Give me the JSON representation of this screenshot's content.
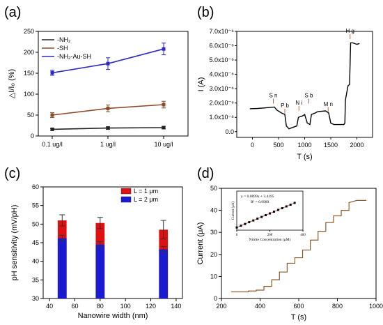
{
  "chart_data": [
    {
      "panel": "(a)",
      "type": "line",
      "categories": [
        "0.1 ug/l",
        "1 ug/l",
        "10 ug/l"
      ],
      "ylabel": "△I/I₀ (%)",
      "ylim": [
        0,
        250
      ],
      "yticks": [
        0,
        50,
        100,
        150,
        200,
        250
      ],
      "legend": "top-left",
      "series": [
        {
          "name": "-NH₂",
          "values": [
            16,
            19,
            20
          ],
          "errors": [
            2,
            3,
            3
          ],
          "color": "#222222"
        },
        {
          "name": "-SH",
          "values": [
            50,
            66,
            75
          ],
          "errors": [
            6,
            8,
            8
          ],
          "color": "#8b4c2a"
        },
        {
          "name": "-NH₂-Au-SH",
          "values": [
            151,
            173,
            208
          ],
          "errors": [
            6,
            14,
            14
          ],
          "color": "#2b2bbf"
        }
      ]
    },
    {
      "panel": "(b)",
      "type": "line",
      "xlabel": "T (s)",
      "ylabel": "I (A)",
      "xlim": [
        -300,
        2300
      ],
      "xticks": [
        0,
        500,
        1000,
        1500,
        2000
      ],
      "ylim": [
        -0.4,
        7.0
      ],
      "yticks": [
        0.0,
        1.0,
        2.0,
        3.0,
        4.0,
        5.0,
        6.0,
        7.0
      ],
      "ytick_labels": [
        "0.0",
        "1.0x10⁻⁶",
        "2.0x10⁻⁶",
        "3.0x10⁻⁶",
        "4.0x10⁻⁶",
        "5.0x10⁻⁶",
        "6.0x10⁻⁶",
        "7.0x10⁻⁶"
      ],
      "x": [
        -50,
        100,
        300,
        420,
        470,
        560,
        620,
        650,
        700,
        850,
        880,
        960,
        1000,
        1050,
        1100,
        1130,
        1200,
        1250,
        1400,
        1460,
        1500,
        1560,
        1750,
        1770,
        1780,
        1830,
        1860,
        1880,
        1920,
        2000,
        2050
      ],
      "values": [
        1.6,
        1.62,
        1.68,
        1.72,
        1.5,
        1.3,
        1.2,
        0.4,
        0.2,
        0.4,
        1.0,
        1.1,
        1.2,
        0.6,
        0.5,
        1.2,
        1.3,
        1.4,
        1.45,
        1.3,
        0.6,
        0.5,
        0.5,
        0.6,
        2.2,
        3.2,
        3.3,
        6.2,
        6.2,
        6.1,
        6.15
      ],
      "annotations": [
        {
          "text": "S n",
          "x": 400,
          "y": 2.4
        },
        {
          "text": "P b",
          "x": 620,
          "y": 1.7
        },
        {
          "text": "N i",
          "x": 890,
          "y": 1.9
        },
        {
          "text": "S b",
          "x": 1080,
          "y": 2.4
        },
        {
          "text": "M n",
          "x": 1450,
          "y": 1.8
        },
        {
          "text": "H g",
          "x": 1870,
          "y": 6.9
        }
      ]
    },
    {
      "panel": "(c)",
      "type": "bar",
      "xlabel": "Nanowire width (nm)",
      "ylabel": "pH sensitivity (mV/pH)",
      "xlim": [
        35,
        145
      ],
      "xticks": [
        40,
        60,
        80,
        100,
        120,
        140
      ],
      "ylim": [
        30,
        60
      ],
      "yticks": [
        30,
        35,
        40,
        45,
        50,
        55,
        60
      ],
      "legend": "top-right",
      "categories": [
        50,
        80,
        130
      ],
      "series": [
        {
          "name": "L = 1 μm",
          "values": [
            51,
            50.3,
            48.5
          ],
          "errors": [
            1.5,
            1.5,
            2.5
          ],
          "color": "#e01010"
        },
        {
          "name": "L = 2 μm",
          "values": [
            46.2,
            44.5,
            43.2
          ],
          "errors": [
            0.8,
            0.8,
            0.8
          ],
          "color": "#1a1ad0"
        }
      ]
    },
    {
      "panel": "(d)",
      "type": "line",
      "xlabel": "T (s)",
      "ylabel": "Current (μA)",
      "xlim": [
        200,
        1000
      ],
      "xticks": [
        200,
        400,
        600,
        800,
        1000
      ],
      "ylim": [
        0,
        50
      ],
      "yticks": [
        0,
        10,
        20,
        30,
        40,
        50
      ],
      "x": [
        250,
        340,
        340,
        380,
        380,
        420,
        420,
        460,
        460,
        500,
        500,
        540,
        540,
        580,
        580,
        620,
        620,
        660,
        660,
        700,
        700,
        740,
        740,
        780,
        780,
        820,
        820,
        860,
        860,
        900,
        950
      ],
      "values": [
        3,
        3,
        3.4,
        3.4,
        3.8,
        3.8,
        5.5,
        5.5,
        8.5,
        8.5,
        12,
        12,
        16,
        16,
        18.5,
        18.5,
        22,
        22,
        26.5,
        26.5,
        30.5,
        30.5,
        34.5,
        34.5,
        37.5,
        37.5,
        40,
        40,
        43.5,
        44.5,
        44.5
      ],
      "inset": {
        "type": "scatter",
        "xlabel": "Nitrite Concentration (μM)",
        "ylabel": "Current (μA)",
        "equation": "y = 0.0899x + 3.4195",
        "r2": "R² = 0.9989",
        "xlim": [
          0,
          400
        ],
        "xticks": [
          0,
          200,
          400
        ],
        "ylim": [
          0,
          50
        ],
        "x": [
          0,
          25,
          50,
          75,
          100,
          125,
          150,
          175,
          200,
          225,
          250,
          275,
          300,
          325,
          350
        ],
        "values": [
          3.4,
          5.7,
          7.9,
          10.2,
          12.4,
          14.7,
          16.9,
          19.2,
          21.4,
          23.7,
          25.9,
          28.1,
          30.4,
          32.6,
          34.9
        ]
      }
    }
  ]
}
